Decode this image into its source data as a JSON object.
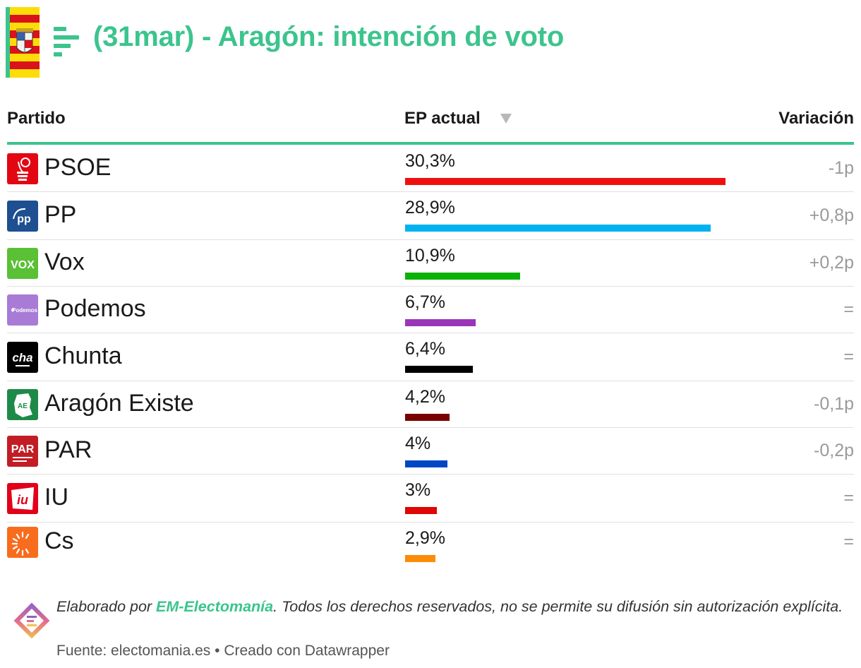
{
  "header": {
    "title": "(31mar) - Aragón: intención de voto"
  },
  "columns": {
    "party": "Partido",
    "ep": "EP actual",
    "variation": "Variación"
  },
  "chart_data": {
    "type": "bar",
    "title": "(31mar) - Aragón: intención de voto",
    "xlabel": "EP actual",
    "ylabel": "Partido",
    "xlim": [
      0,
      30.3
    ],
    "categories": [
      "PSOE",
      "PP",
      "Vox",
      "Podemos",
      "Chunta",
      "Aragón Existe",
      "PAR",
      "IU",
      "Cs"
    ],
    "values": [
      30.3,
      28.9,
      10.9,
      6.7,
      6.4,
      4.2,
      4,
      3,
      2.9
    ],
    "value_labels": [
      "30,3%",
      "28,9%",
      "10,9%",
      "6,7%",
      "6,4%",
      "4,2%",
      "4%",
      "3%",
      "2,9%"
    ],
    "variations": [
      "-1p",
      "+0,8p",
      "+0,2p",
      "=",
      "=",
      "-0,1p",
      "-0,2p",
      "=",
      "="
    ],
    "colors": [
      "#f00f0f",
      "#01b2f1",
      "#09b205",
      "#9a35b9",
      "#000000",
      "#780000",
      "#0047c4",
      "#e10505",
      "#fa8c07"
    ]
  },
  "rows": [
    {
      "name": "PSOE",
      "value_label": "30,3%",
      "variation": "-1p"
    },
    {
      "name": "PP",
      "value_label": "28,9%",
      "variation": "+0,8p"
    },
    {
      "name": "Vox",
      "value_label": "10,9%",
      "variation": "+0,2p"
    },
    {
      "name": "Podemos",
      "value_label": "6,7%",
      "variation": "="
    },
    {
      "name": "Chunta",
      "value_label": "6,4%",
      "variation": "="
    },
    {
      "name": "Aragón Existe",
      "value_label": "4,2%",
      "variation": "-0,1p"
    },
    {
      "name": "PAR",
      "value_label": "4%",
      "variation": "-0,2p"
    },
    {
      "name": "IU",
      "value_label": "3%",
      "variation": "="
    },
    {
      "name": "Cs",
      "value_label": "2,9%",
      "variation": "="
    }
  ],
  "logos": {
    "podemos_text": "Podemos",
    "chunta_text": "cha",
    "aragon_existe_text": "AE",
    "par_text": "PAR",
    "iu_text": "iu"
  },
  "footer": {
    "prefix": "Elaborado por ",
    "brand": "EM-Electomanía",
    "rest": ". Todos los derechos reservados, no se permite su difusión sin autorización explícita.",
    "source": "Fuente: electomania.es • Creado con Datawrapper"
  },
  "icons": {
    "sort": "sort-desc-icon",
    "brand": "electomania-bars-icon",
    "flag": "aragon-flag-icon"
  },
  "colors": {
    "accent": "#3cc48d",
    "muted": "#9a9a9a"
  }
}
